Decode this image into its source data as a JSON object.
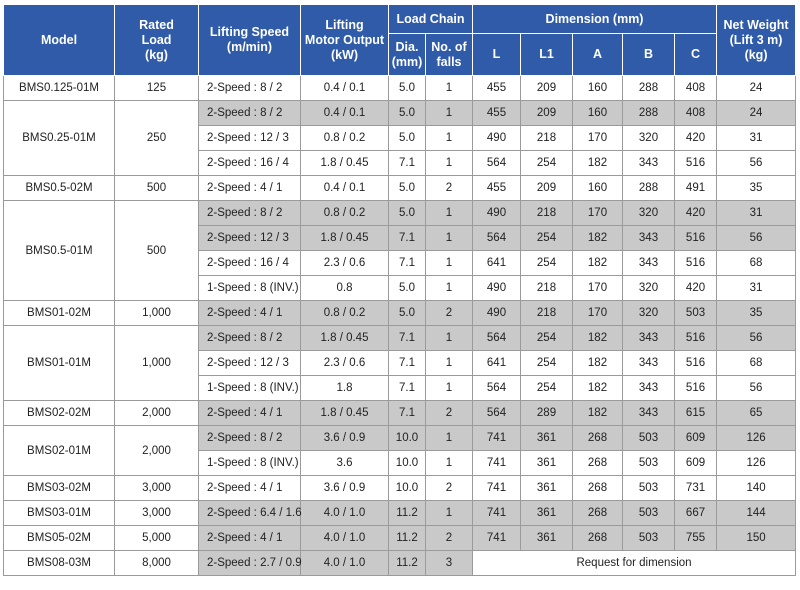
{
  "table": {
    "header": {
      "model": "Model",
      "rated_load": "Rated\nLoad\n(kg)",
      "speed": "Lifting Speed\n(m/min)",
      "output": "Lifting\nMotor Output\n(kW)",
      "load_chain": "Load Chain",
      "dia": "Dia.\n(mm)",
      "falls": "No. of\nfalls",
      "dimension": "Dimension (mm)",
      "L": "L",
      "L1": "L1",
      "A": "A",
      "B": "B",
      "C": "C",
      "weight": "Net Weight\n(Lift 3 m)\n(kg)"
    },
    "groups": [
      {
        "model": "BMS0.125-01M",
        "rated_load": "125",
        "variants": [
          {
            "speed": "2-Speed : 8 / 2",
            "output": "0.4 / 0.1",
            "dia": "5.0",
            "falls": "1",
            "L": "455",
            "L1": "209",
            "A": "160",
            "B": "288",
            "C": "408",
            "weight": "24"
          }
        ]
      },
      {
        "model": "BMS0.25-01M",
        "rated_load": "250",
        "variants": [
          {
            "speed": "2-Speed : 8 / 2",
            "output": "0.4 / 0.1",
            "dia": "5.0",
            "falls": "1",
            "L": "455",
            "L1": "209",
            "A": "160",
            "B": "288",
            "C": "408",
            "weight": "24"
          },
          {
            "speed": "2-Speed : 12 / 3",
            "output": "0.8 / 0.2",
            "dia": "5.0",
            "falls": "1",
            "L": "490",
            "L1": "218",
            "A": "170",
            "B": "320",
            "C": "420",
            "weight": "31"
          },
          {
            "speed": "2-Speed : 16 / 4",
            "output": "1.8 / 0.45",
            "dia": "7.1",
            "falls": "1",
            "L": "564",
            "L1": "254",
            "A": "182",
            "B": "343",
            "C": "516",
            "weight": "56"
          }
        ]
      },
      {
        "model": "BMS0.5-02M",
        "rated_load": "500",
        "variants": [
          {
            "speed": "2-Speed : 4 / 1",
            "output": "0.4 / 0.1",
            "dia": "5.0",
            "falls": "2",
            "L": "455",
            "L1": "209",
            "A": "160",
            "B": "288",
            "C": "491",
            "weight": "35"
          }
        ]
      },
      {
        "model": "BMS0.5-01M",
        "rated_load": "500",
        "variants": [
          {
            "speed": "2-Speed : 8 / 2",
            "output": "0.8 / 0.2",
            "dia": "5.0",
            "falls": "1",
            "L": "490",
            "L1": "218",
            "A": "170",
            "B": "320",
            "C": "420",
            "weight": "31"
          },
          {
            "speed": "2-Speed : 12 / 3",
            "output": "1.8 / 0.45",
            "dia": "7.1",
            "falls": "1",
            "L": "564",
            "L1": "254",
            "A": "182",
            "B": "343",
            "C": "516",
            "weight": "56"
          },
          {
            "speed": "2-Speed : 16 / 4",
            "output": "2.3 / 0.6",
            "dia": "7.1",
            "falls": "1",
            "L": "641",
            "L1": "254",
            "A": "182",
            "B": "343",
            "C": "516",
            "weight": "68"
          },
          {
            "speed": "1-Speed : 8 (INV.)",
            "output": "0.8",
            "dia": "5.0",
            "falls": "1",
            "L": "490",
            "L1": "218",
            "A": "170",
            "B": "320",
            "C": "420",
            "weight": "31"
          }
        ]
      },
      {
        "model": "BMS01-02M",
        "rated_load": "1,000",
        "variants": [
          {
            "speed": "2-Speed : 4 / 1",
            "output": "0.8 / 0.2",
            "dia": "5.0",
            "falls": "2",
            "L": "490",
            "L1": "218",
            "A": "170",
            "B": "320",
            "C": "503",
            "weight": "35"
          }
        ]
      },
      {
        "model": "BMS01-01M",
        "rated_load": "1,000",
        "variants": [
          {
            "speed": "2-Speed : 8 / 2",
            "output": "1.8 / 0.45",
            "dia": "7.1",
            "falls": "1",
            "L": "564",
            "L1": "254",
            "A": "182",
            "B": "343",
            "C": "516",
            "weight": "56"
          },
          {
            "speed": "2-Speed : 12 / 3",
            "output": "2.3 / 0.6",
            "dia": "7.1",
            "falls": "1",
            "L": "641",
            "L1": "254",
            "A": "182",
            "B": "343",
            "C": "516",
            "weight": "68"
          },
          {
            "speed": "1-Speed : 8 (INV.)",
            "output": "1.8",
            "dia": "7.1",
            "falls": "1",
            "L": "564",
            "L1": "254",
            "A": "182",
            "B": "343",
            "C": "516",
            "weight": "56"
          }
        ]
      },
      {
        "model": "BMS02-02M",
        "rated_load": "2,000",
        "variants": [
          {
            "speed": "2-Speed : 4 / 1",
            "output": "1.8 / 0.45",
            "dia": "7.1",
            "falls": "2",
            "L": "564",
            "L1": "289",
            "A": "182",
            "B": "343",
            "C": "615",
            "weight": "65"
          }
        ]
      },
      {
        "model": "BMS02-01M",
        "rated_load": "2,000",
        "variants": [
          {
            "speed": "2-Speed : 8 / 2",
            "output": "3.6 / 0.9",
            "dia": "10.0",
            "falls": "1",
            "L": "741",
            "L1": "361",
            "A": "268",
            "B": "503",
            "C": "609",
            "weight": "126"
          },
          {
            "speed": "1-Speed : 8 (INV.)",
            "output": "3.6",
            "dia": "10.0",
            "falls": "1",
            "L": "741",
            "L1": "361",
            "A": "268",
            "B": "503",
            "C": "609",
            "weight": "126"
          }
        ]
      },
      {
        "model": "BMS03-02M",
        "rated_load": "3,000",
        "variants": [
          {
            "speed": "2-Speed : 4 / 1",
            "output": "3.6 / 0.9",
            "dia": "10.0",
            "falls": "2",
            "L": "741",
            "L1": "361",
            "A": "268",
            "B": "503",
            "C": "731",
            "weight": "140"
          }
        ]
      },
      {
        "model": "BMS03-01M",
        "rated_load": "3,000",
        "variants": [
          {
            "speed": "2-Speed : 6.4 / 1.6",
            "output": "4.0 / 1.0",
            "dia": "11.2",
            "falls": "1",
            "L": "741",
            "L1": "361",
            "A": "268",
            "B": "503",
            "C": "667",
            "weight": "144"
          }
        ]
      },
      {
        "model": "BMS05-02M",
        "rated_load": "5,000",
        "variants": [
          {
            "speed": "2-Speed : 4 / 1",
            "output": "4.0 / 1.0",
            "dia": "11.2",
            "falls": "2",
            "L": "741",
            "L1": "361",
            "A": "268",
            "B": "503",
            "C": "755",
            "weight": "150"
          }
        ]
      },
      {
        "model": "BMS08-03M",
        "rated_load": "8,000",
        "variants": [
          {
            "speed": "2-Speed : 2.7 / 0.9",
            "output": "4.0 / 1.0",
            "dia": "11.2",
            "falls": "3",
            "note": "Request for dimension"
          }
        ]
      }
    ]
  }
}
